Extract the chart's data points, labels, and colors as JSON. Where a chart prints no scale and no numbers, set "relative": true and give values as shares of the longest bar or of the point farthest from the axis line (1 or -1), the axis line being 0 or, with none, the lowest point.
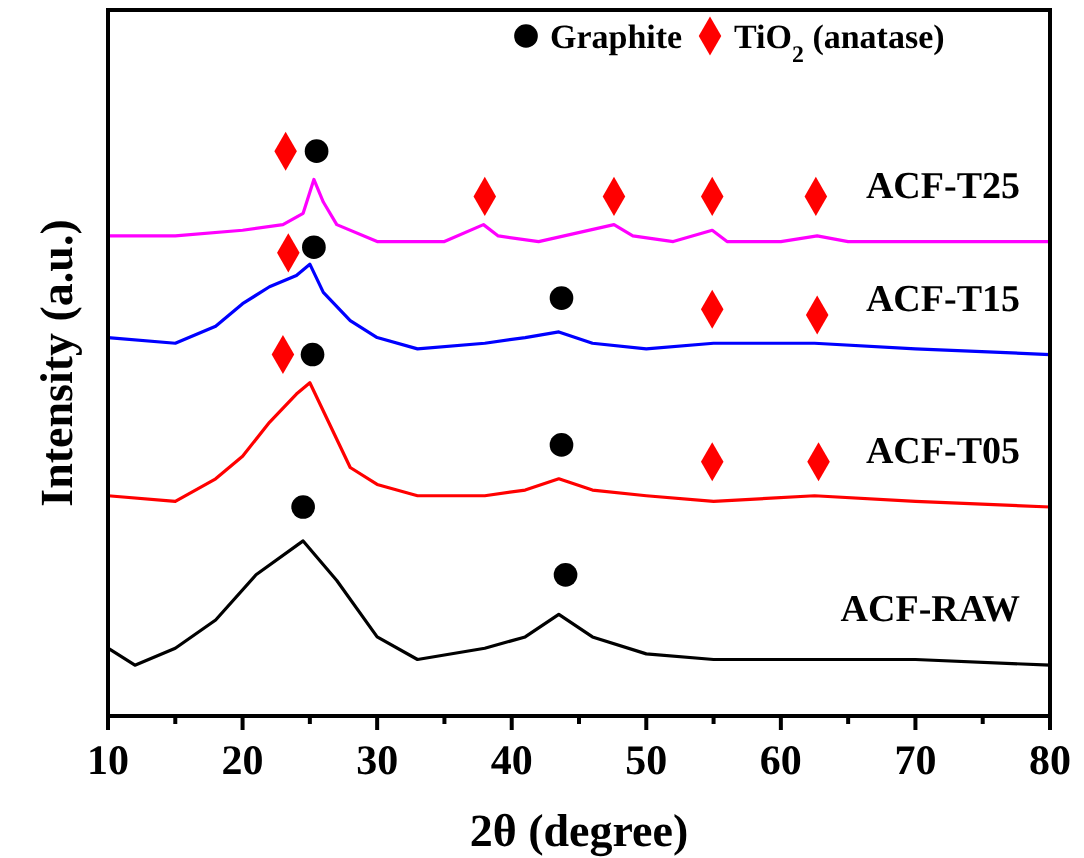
{
  "chart_data": {
    "type": "line",
    "relative": true,
    "xlabel": "2θ (degree)",
    "ylabel": "Intensity (a.u.)",
    "xlim": [
      10,
      80
    ],
    "xticks": [
      10,
      {
        "value": 15,
        "label": null
      },
      20,
      {
        "value": 25,
        "label": null
      },
      30,
      {
        "value": 35,
        "label": null
      },
      40,
      {
        "value": 45,
        "label": null
      },
      50,
      {
        "value": 55,
        "label": null
      },
      60,
      {
        "value": 65,
        "label": null
      },
      70,
      {
        "value": 75,
        "label": null
      },
      80
    ],
    "tick_labels": "x",
    "legend": "top right",
    "series": [
      {
        "name": "ACF-RAW",
        "type": "line",
        "color": "#000000",
        "x": [
          10,
          12,
          15,
          18,
          21,
          24.5,
          27,
          30,
          33,
          38,
          41,
          43.5,
          46,
          50,
          55,
          60,
          70,
          80
        ],
        "values": [
          0.12,
          0.09,
          0.12,
          0.17,
          0.25,
          0.31,
          0.24,
          0.14,
          0.1,
          0.12,
          0.14,
          0.18,
          0.14,
          0.11,
          0.1,
          0.1,
          0.1,
          0.09
        ]
      },
      {
        "name": "ACF-T05",
        "type": "line",
        "color": "#ff0000",
        "x": [
          10,
          15,
          18,
          20,
          22,
          24,
          25,
          26,
          28,
          30,
          33,
          38,
          41,
          43.5,
          46,
          50,
          55,
          62.5,
          70,
          80
        ],
        "values": [
          0.39,
          0.38,
          0.42,
          0.46,
          0.52,
          0.57,
          0.59,
          0.54,
          0.44,
          0.41,
          0.39,
          0.39,
          0.4,
          0.42,
          0.4,
          0.39,
          0.38,
          0.39,
          0.38,
          0.37
        ]
      },
      {
        "name": "ACF-T15",
        "type": "line",
        "color": "#0000ff",
        "x": [
          10,
          15,
          18,
          20,
          22,
          24,
          25,
          26,
          28,
          30,
          33,
          38,
          41,
          43.5,
          46,
          50,
          55,
          62.5,
          70,
          80
        ],
        "values": [
          0.67,
          0.66,
          0.69,
          0.73,
          0.76,
          0.78,
          0.8,
          0.75,
          0.7,
          0.67,
          0.65,
          0.66,
          0.67,
          0.68,
          0.66,
          0.65,
          0.66,
          0.66,
          0.65,
          0.64
        ]
      },
      {
        "name": "ACF-T25",
        "type": "line",
        "color": "#ff00ff",
        "x": [
          10,
          15,
          20,
          23,
          24.5,
          25.3,
          26,
          27,
          30,
          35,
          37.9,
          39,
          42,
          47.6,
          49,
          52,
          54.9,
          56,
          60,
          62.7,
          65,
          70,
          80
        ],
        "values": [
          0.85,
          0.85,
          0.86,
          0.87,
          0.89,
          0.95,
          0.91,
          0.87,
          0.84,
          0.84,
          0.87,
          0.85,
          0.84,
          0.87,
          0.85,
          0.84,
          0.86,
          0.84,
          0.84,
          0.85,
          0.84,
          0.84,
          0.84
        ]
      },
      {
        "name": "Graphite",
        "type": "scatter",
        "marker": "circle",
        "color": "#000000",
        "x": [
          25.5,
          25.3,
          43.7,
          25.2,
          43.7,
          24.5,
          44.0
        ],
        "values": [
          1.0,
          0.83,
          0.74,
          0.64,
          0.48,
          0.37,
          0.25
        ]
      },
      {
        "name": "TiO$_{2}$ (anatase)",
        "type": "scatter",
        "marker": "diamond",
        "color": "#ff0000",
        "x": [
          23.2,
          38.0,
          47.6,
          54.9,
          62.6,
          23.4,
          54.9,
          62.7,
          23.0,
          54.9,
          62.8
        ],
        "values": [
          1.0,
          0.92,
          0.92,
          0.92,
          0.92,
          0.82,
          0.72,
          0.71,
          0.64,
          0.45,
          0.45
        ]
      }
    ]
  }
}
